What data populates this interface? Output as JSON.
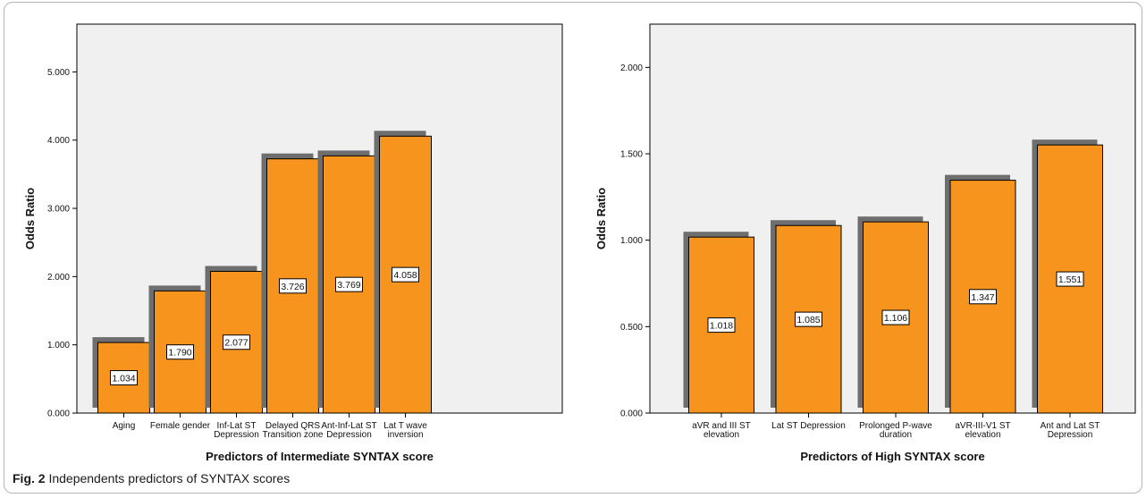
{
  "figure_caption": {
    "label": "Fig. 2",
    "text": "Independents predictors of SYNTAX scores"
  },
  "colors": {
    "bar_fill": "#f7941d",
    "bar_shadow": "#6e6e6e",
    "plot_background": "#f0f0f0",
    "bar_border": "#000000"
  },
  "chart_data": [
    {
      "type": "bar",
      "title": "",
      "xlabel": "Predictors of Intermediate SYNTAX score",
      "ylabel": "Odds Ratio",
      "ylim": [
        0,
        5.7
      ],
      "yticks": [
        0,
        1,
        2,
        3,
        4,
        5
      ],
      "ytick_labels": [
        "0.000",
        "1.000",
        "2.000",
        "3.000",
        "4.000",
        "5.000"
      ],
      "categories": [
        [
          "Aging"
        ],
        [
          "Female gender"
        ],
        [
          "Inf-Lat ST",
          "Depression"
        ],
        [
          "Delayed QRS",
          "Transition zone"
        ],
        [
          "Ant-Inf-Lat ST",
          "Depression"
        ],
        [
          "Lat T wave",
          "inversion"
        ]
      ],
      "values": [
        1.034,
        1.79,
        2.077,
        3.726,
        3.769,
        4.058
      ],
      "data_labels": [
        "1.034",
        "1.790",
        "2.077",
        "3.726",
        "3.769",
        "4.058"
      ],
      "grid": false,
      "legend": "none"
    },
    {
      "type": "bar",
      "title": "",
      "xlabel": "Predictors of High SYNTAX score",
      "ylabel": "Odds Ratio",
      "ylim": [
        0,
        2.25
      ],
      "yticks": [
        0,
        0.5,
        1,
        1.5,
        2
      ],
      "ytick_labels": [
        "0.000",
        "0.500",
        "1.000",
        "1.500",
        "2.000"
      ],
      "categories": [
        [
          "aVR and III ST",
          "elevation"
        ],
        [
          "Lat ST Depression"
        ],
        [
          "Prolonged P-wave",
          "duration"
        ],
        [
          "aVR-III-V1 ST",
          "elevation"
        ],
        [
          "Ant and Lat ST",
          "Depression"
        ]
      ],
      "values": [
        1.018,
        1.085,
        1.106,
        1.347,
        1.551
      ],
      "data_labels": [
        "1.018",
        "1.085",
        "1.106",
        "1.347",
        "1.551"
      ],
      "grid": false,
      "legend": "none"
    }
  ]
}
